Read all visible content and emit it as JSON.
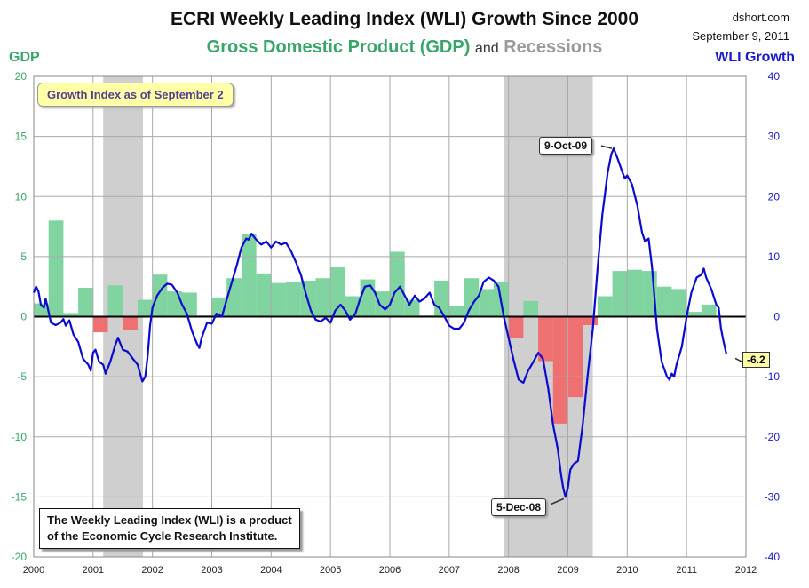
{
  "header": {
    "title": "ECRI Weekly Leading Index (WLI) Growth Since 2000",
    "subtitle_gdp": "Gross Domestic Product (GDP)",
    "subtitle_and": "and",
    "subtitle_rec": "Recessions",
    "source": "dshort.com",
    "date": "September 9, 2011"
  },
  "axes": {
    "left_label": "GDP",
    "right_label": "WLI Growth"
  },
  "annotations": {
    "callout": "Growth Index as of September 2",
    "note_line1": "The Weekly Leading Index (WLI) is a product",
    "note_line2": "of the Economic Cycle Research Institute.",
    "peak_label": "9-Oct-09",
    "trough_label": "5-Dec-08",
    "last_value": "-6.2"
  },
  "colors": {
    "gdp_positive": "#7fd4a0",
    "gdp_negative": "#ee7070",
    "recession": "#cfcfcf",
    "wli_line": "#0a0ad0"
  },
  "chart_data": {
    "type": "bar+line",
    "x_ticks": [
      "2000",
      "2001",
      "2002",
      "2003",
      "2004",
      "2005",
      "2006",
      "2007",
      "2008",
      "2009",
      "2010",
      "2011",
      "2012"
    ],
    "left_axis": {
      "ticks": [
        20,
        15,
        10,
        5,
        0,
        -5,
        -10,
        -15,
        -20
      ],
      "range": [
        -20,
        20
      ]
    },
    "right_axis": {
      "ticks": [
        40,
        30,
        20,
        10,
        0,
        -10,
        -20,
        -30,
        -40
      ],
      "range": [
        -40,
        40
      ]
    },
    "recessions": [
      {
        "start": 2001.17,
        "end": 2001.84
      },
      {
        "start": 2007.92,
        "end": 2009.42
      }
    ],
    "gdp_quarters": [
      {
        "q": 2000.0,
        "v": 1.1
      },
      {
        "q": 2000.25,
        "v": 8.0
      },
      {
        "q": 2000.5,
        "v": 0.3
      },
      {
        "q": 2000.75,
        "v": 2.4
      },
      {
        "q": 2001.0,
        "v": -1.3
      },
      {
        "q": 2001.25,
        "v": 2.6
      },
      {
        "q": 2001.5,
        "v": -1.1
      },
      {
        "q": 2001.75,
        "v": 1.4
      },
      {
        "q": 2002.0,
        "v": 3.5
      },
      {
        "q": 2002.25,
        "v": 2.1
      },
      {
        "q": 2002.5,
        "v": 2.0
      },
      {
        "q": 2002.75,
        "v": 0.1
      },
      {
        "q": 2003.0,
        "v": 1.6
      },
      {
        "q": 2003.25,
        "v": 3.2
      },
      {
        "q": 2003.5,
        "v": 6.9
      },
      {
        "q": 2003.75,
        "v": 3.6
      },
      {
        "q": 2004.0,
        "v": 2.8
      },
      {
        "q": 2004.25,
        "v": 2.9
      },
      {
        "q": 2004.5,
        "v": 3.0
      },
      {
        "q": 2004.75,
        "v": 3.2
      },
      {
        "q": 2005.0,
        "v": 4.1
      },
      {
        "q": 2005.25,
        "v": 1.7
      },
      {
        "q": 2005.5,
        "v": 3.1
      },
      {
        "q": 2005.75,
        "v": 2.1
      },
      {
        "q": 2006.0,
        "v": 5.4
      },
      {
        "q": 2006.25,
        "v": 1.4
      },
      {
        "q": 2006.5,
        "v": 0.1
      },
      {
        "q": 2006.75,
        "v": 3.0
      },
      {
        "q": 2007.0,
        "v": 0.9
      },
      {
        "q": 2007.25,
        "v": 3.2
      },
      {
        "q": 2007.5,
        "v": 2.3
      },
      {
        "q": 2007.75,
        "v": 2.9
      },
      {
        "q": 2008.0,
        "v": -1.8
      },
      {
        "q": 2008.25,
        "v": 1.3
      },
      {
        "q": 2008.5,
        "v": -3.7
      },
      {
        "q": 2008.75,
        "v": -8.9
      },
      {
        "q": 2009.0,
        "v": -6.7
      },
      {
        "q": 2009.25,
        "v": -0.7
      },
      {
        "q": 2009.5,
        "v": 1.7
      },
      {
        "q": 2009.75,
        "v": 3.8
      },
      {
        "q": 2010.0,
        "v": 3.9
      },
      {
        "q": 2010.25,
        "v": 3.8
      },
      {
        "q": 2010.5,
        "v": 2.5
      },
      {
        "q": 2010.75,
        "v": 2.3
      },
      {
        "q": 2011.0,
        "v": 0.4
      },
      {
        "q": 2011.25,
        "v": 1.0
      }
    ],
    "wli": [
      [
        2000.0,
        4.0
      ],
      [
        2000.04,
        5.0
      ],
      [
        2000.08,
        4.2
      ],
      [
        2000.12,
        2.0
      ],
      [
        2000.17,
        1.5
      ],
      [
        2000.2,
        3.0
      ],
      [
        2000.24,
        1.3
      ],
      [
        2000.29,
        -1.0
      ],
      [
        2000.37,
        -1.4
      ],
      [
        2000.45,
        -1.0
      ],
      [
        2000.5,
        -0.4
      ],
      [
        2000.54,
        -1.5
      ],
      [
        2000.6,
        -0.6
      ],
      [
        2000.67,
        -3.0
      ],
      [
        2000.75,
        -4.2
      ],
      [
        2000.83,
        -7.0
      ],
      [
        2000.92,
        -8.0
      ],
      [
        2000.96,
        -9.0
      ],
      [
        2001.0,
        -6.0
      ],
      [
        2001.04,
        -5.5
      ],
      [
        2001.1,
        -7.5
      ],
      [
        2001.17,
        -8.0
      ],
      [
        2001.21,
        -9.5
      ],
      [
        2001.29,
        -7.5
      ],
      [
        2001.37,
        -4.8
      ],
      [
        2001.42,
        -3.5
      ],
      [
        2001.5,
        -5.5
      ],
      [
        2001.58,
        -5.8
      ],
      [
        2001.67,
        -7.0
      ],
      [
        2001.75,
        -8.0
      ],
      [
        2001.83,
        -10.8
      ],
      [
        2001.88,
        -10.0
      ],
      [
        2001.92,
        -6.5
      ],
      [
        2001.96,
        -1.5
      ],
      [
        2002.0,
        1.5
      ],
      [
        2002.08,
        3.5
      ],
      [
        2002.17,
        4.8
      ],
      [
        2002.25,
        5.5
      ],
      [
        2002.33,
        5.3
      ],
      [
        2002.42,
        4.0
      ],
      [
        2002.5,
        2.0
      ],
      [
        2002.58,
        0.5
      ],
      [
        2002.67,
        -2.5
      ],
      [
        2002.75,
        -4.5
      ],
      [
        2002.79,
        -5.2
      ],
      [
        2002.83,
        -3.5
      ],
      [
        2002.92,
        -1.0
      ],
      [
        2003.0,
        -1.2
      ],
      [
        2003.08,
        0.5
      ],
      [
        2003.17,
        0.0
      ],
      [
        2003.25,
        2.8
      ],
      [
        2003.33,
        5.5
      ],
      [
        2003.42,
        8.5
      ],
      [
        2003.5,
        11.5
      ],
      [
        2003.58,
        13.0
      ],
      [
        2003.62,
        12.8
      ],
      [
        2003.67,
        13.8
      ],
      [
        2003.75,
        12.8
      ],
      [
        2003.83,
        12.0
      ],
      [
        2003.92,
        12.5
      ],
      [
        2004.0,
        11.5
      ],
      [
        2004.08,
        12.5
      ],
      [
        2004.17,
        12.0
      ],
      [
        2004.25,
        12.3
      ],
      [
        2004.33,
        11.0
      ],
      [
        2004.42,
        9.0
      ],
      [
        2004.5,
        7.0
      ],
      [
        2004.58,
        4.0
      ],
      [
        2004.67,
        1.0
      ],
      [
        2004.75,
        -0.5
      ],
      [
        2004.83,
        -0.8
      ],
      [
        2004.92,
        -0.2
      ],
      [
        2005.0,
        -1.0
      ],
      [
        2005.08,
        1.0
      ],
      [
        2005.17,
        2.0
      ],
      [
        2005.25,
        1.0
      ],
      [
        2005.33,
        -0.5
      ],
      [
        2005.42,
        0.5
      ],
      [
        2005.5,
        3.0
      ],
      [
        2005.58,
        5.0
      ],
      [
        2005.67,
        5.2
      ],
      [
        2005.75,
        4.0
      ],
      [
        2005.83,
        2.0
      ],
      [
        2005.92,
        1.2
      ],
      [
        2006.0,
        2.0
      ],
      [
        2006.08,
        4.0
      ],
      [
        2006.17,
        5.0
      ],
      [
        2006.25,
        3.5
      ],
      [
        2006.33,
        2.0
      ],
      [
        2006.42,
        3.5
      ],
      [
        2006.5,
        2.5
      ],
      [
        2006.58,
        3.0
      ],
      [
        2006.67,
        4.0
      ],
      [
        2006.75,
        2.0
      ],
      [
        2006.83,
        1.5
      ],
      [
        2006.92,
        0.0
      ],
      [
        2007.0,
        -1.5
      ],
      [
        2007.08,
        -2.0
      ],
      [
        2007.17,
        -2.0
      ],
      [
        2007.25,
        -1.0
      ],
      [
        2007.33,
        1.0
      ],
      [
        2007.42,
        2.5
      ],
      [
        2007.5,
        3.5
      ],
      [
        2007.58,
        5.8
      ],
      [
        2007.67,
        6.5
      ],
      [
        2007.75,
        6.0
      ],
      [
        2007.83,
        5.0
      ],
      [
        2007.92,
        0.0
      ],
      [
        2008.0,
        -3.5
      ],
      [
        2008.08,
        -7.0
      ],
      [
        2008.17,
        -10.5
      ],
      [
        2008.25,
        -11.0
      ],
      [
        2008.33,
        -9.0
      ],
      [
        2008.42,
        -7.5
      ],
      [
        2008.5,
        -6.0
      ],
      [
        2008.58,
        -7.0
      ],
      [
        2008.67,
        -12.0
      ],
      [
        2008.75,
        -18.0
      ],
      [
        2008.83,
        -22.0
      ],
      [
        2008.88,
        -26.0
      ],
      [
        2008.92,
        -28.5
      ],
      [
        2008.96,
        -30.0
      ],
      [
        2009.0,
        -28.5
      ],
      [
        2009.04,
        -25.5
      ],
      [
        2009.1,
        -24.5
      ],
      [
        2009.17,
        -24.0
      ],
      [
        2009.25,
        -18.0
      ],
      [
        2009.33,
        -10.0
      ],
      [
        2009.42,
        -2.0
      ],
      [
        2009.5,
        8.0
      ],
      [
        2009.58,
        17.0
      ],
      [
        2009.67,
        24.0
      ],
      [
        2009.73,
        27.0
      ],
      [
        2009.77,
        28.0
      ],
      [
        2009.83,
        26.5
      ],
      [
        2009.92,
        24.0
      ],
      [
        2009.96,
        23.0
      ],
      [
        2010.0,
        23.5
      ],
      [
        2010.08,
        22.0
      ],
      [
        2010.17,
        18.5
      ],
      [
        2010.25,
        14.0
      ],
      [
        2010.3,
        12.5
      ],
      [
        2010.36,
        13.0
      ],
      [
        2010.42,
        8.0
      ],
      [
        2010.5,
        -2.0
      ],
      [
        2010.58,
        -7.5
      ],
      [
        2010.67,
        -10.0
      ],
      [
        2010.71,
        -10.5
      ],
      [
        2010.75,
        -9.5
      ],
      [
        2010.79,
        -10.0
      ],
      [
        2010.83,
        -8.0
      ],
      [
        2010.92,
        -5.0
      ],
      [
        2011.0,
        0.0
      ],
      [
        2011.08,
        4.0
      ],
      [
        2011.17,
        6.5
      ],
      [
        2011.25,
        7.0
      ],
      [
        2011.29,
        8.0
      ],
      [
        2011.33,
        6.5
      ],
      [
        2011.42,
        4.5
      ],
      [
        2011.5,
        2.0
      ],
      [
        2011.54,
        1.5
      ],
      [
        2011.58,
        -2.0
      ],
      [
        2011.62,
        -4.0
      ],
      [
        2011.67,
        -6.2
      ]
    ]
  }
}
